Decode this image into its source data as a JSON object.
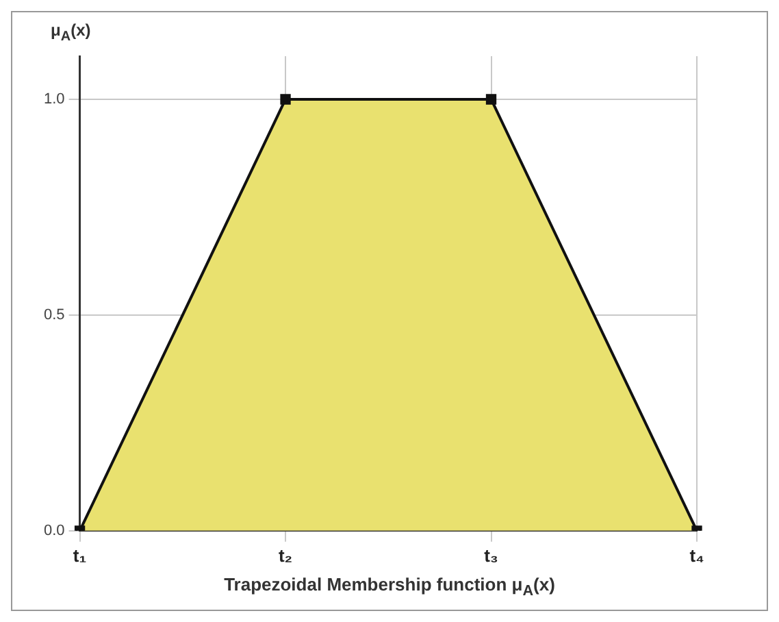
{
  "chart_data": {
    "type": "area",
    "xlabel": "Trapezoidal Membership function μ$_{A}$(x)",
    "ylabel": "μ$_{A}$(x)",
    "categories": [
      "t₁",
      "t₂",
      "t₃",
      "t₄"
    ],
    "series": [
      {
        "color": "#e9e16f",
        "values": [
          0,
          1,
          1,
          0
        ]
      }
    ],
    "ylim": [
      0,
      1.1
    ],
    "yticks": [
      {
        "value": 0,
        "label": "0.0"
      },
      {
        "value": 0.5,
        "label": "0.5"
      },
      {
        "value": 1,
        "label": "1.0"
      }
    ],
    "grid": true,
    "marker": "square",
    "legend": false
  }
}
